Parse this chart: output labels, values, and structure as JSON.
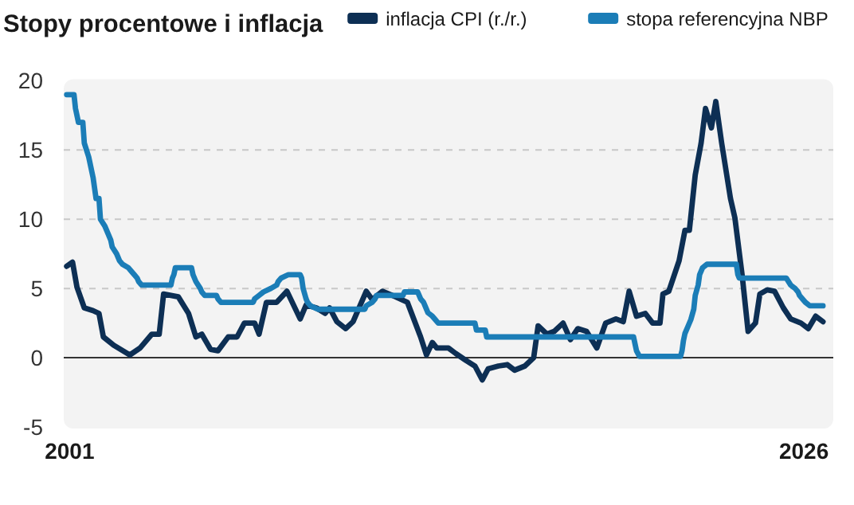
{
  "chart_data": {
    "type": "line",
    "title": "Stopy procentowe i inflacja",
    "legend": "top right",
    "grid": "y",
    "xlim": [
      2000.8,
      2027.0
    ],
    "xticks": [
      2001,
      2026
    ],
    "ylim": [
      -5,
      20
    ],
    "yticks": [
      -5,
      0,
      5,
      10,
      15,
      20
    ],
    "series": [
      {
        "name": "inflacja CPI (r./r.)",
        "color": "#0d2f54",
        "x": [
          2000.9,
          2001.1,
          2001.25,
          2001.5,
          2001.8,
          2002.0,
          2002.15,
          2002.5,
          2003.05,
          2003.4,
          2003.8,
          2004.05,
          2004.2,
          2004.7,
          2005.05,
          2005.3,
          2005.5,
          2005.8,
          2006.05,
          2006.4,
          2006.7,
          2006.95,
          2007.3,
          2007.45,
          2007.7,
          2008.05,
          2008.4,
          2008.85,
          2009.05,
          2009.4,
          2009.7,
          2009.85,
          2010.1,
          2010.4,
          2010.65,
          2011.1,
          2011.3,
          2011.65,
          2012.1,
          2012.5,
          2012.95,
          2013.15,
          2013.35,
          2013.5,
          2013.9,
          2014.15,
          2014.5,
          2014.8,
          2015.05,
          2015.25,
          2015.6,
          2015.9,
          2016.15,
          2016.5,
          2016.8,
          2016.95,
          2017.25,
          2017.5,
          2017.8,
          2018.05,
          2018.3,
          2018.6,
          2018.95,
          2019.25,
          2019.6,
          2019.85,
          2020.05,
          2020.3,
          2020.6,
          2020.85,
          2021.1,
          2021.2,
          2021.4,
          2021.75,
          2021.95,
          2022.1,
          2022.3,
          2022.5,
          2022.65,
          2022.85,
          2023.0,
          2023.2,
          2023.5,
          2023.65,
          2023.9,
          2024.1,
          2024.35,
          2024.5,
          2024.75,
          2025.0,
          2025.3,
          2025.55,
          2025.9,
          2026.15,
          2026.4,
          2026.65
        ],
        "values": [
          6.6,
          6.9,
          5.1,
          3.6,
          3.4,
          3.2,
          1.5,
          0.9,
          0.2,
          0.7,
          1.7,
          1.7,
          4.6,
          4.4,
          3.2,
          1.5,
          1.7,
          0.6,
          0.5,
          1.5,
          1.5,
          2.5,
          2.5,
          1.7,
          4.0,
          4.0,
          4.8,
          2.8,
          3.8,
          3.6,
          3.2,
          3.6,
          2.6,
          2.1,
          2.6,
          4.8,
          4.2,
          4.8,
          4.4,
          4.0,
          1.5,
          0.2,
          1.1,
          0.7,
          0.7,
          0.3,
          -0.2,
          -0.6,
          -1.6,
          -0.8,
          -0.6,
          -0.5,
          -0.9,
          -0.6,
          0.0,
          2.3,
          1.7,
          1.9,
          2.5,
          1.3,
          2.1,
          1.9,
          0.7,
          2.5,
          2.8,
          2.6,
          4.8,
          3.0,
          3.2,
          2.5,
          2.5,
          4.6,
          4.8,
          7.0,
          9.2,
          9.2,
          13.2,
          15.5,
          18.0,
          16.6,
          18.5,
          15.5,
          11.5,
          10.1,
          5.9,
          1.9,
          2.5,
          4.6,
          4.9,
          4.8,
          3.6,
          2.8,
          2.5,
          2.1,
          3.0,
          2.6
        ]
      },
      {
        "name": "stopa referencyjna NBP",
        "color": "#1b7db7",
        "x": [
          2000.9,
          2001.15,
          2001.2,
          2001.3,
          2001.45,
          2001.5,
          2001.65,
          2001.8,
          2001.9,
          2002.0,
          2002.05,
          2002.2,
          2002.3,
          2002.4,
          2002.45,
          2002.6,
          2002.7,
          2002.8,
          2003.0,
          2003.1,
          2003.2,
          2003.3,
          2003.35,
          2003.45,
          2004.45,
          2004.5,
          2004.55,
          2004.6,
          2005.15,
          2005.2,
          2005.3,
          2005.45,
          2005.5,
          2005.6,
          2006.0,
          2006.05,
          2006.15,
          2007.25,
          2007.3,
          2007.45,
          2007.6,
          2007.85,
          2008.05,
          2008.1,
          2008.2,
          2008.45,
          2008.85,
          2008.9,
          2008.95,
          2009.05,
          2009.1,
          2009.2,
          2009.45,
          2011.05,
          2011.1,
          2011.3,
          2011.4,
          2011.45,
          2012.35,
          2012.4,
          2012.85,
          2012.9,
          2012.95,
          2013.05,
          2013.1,
          2013.2,
          2013.35,
          2013.45,
          2013.55,
          2014.8,
          2014.85,
          2015.15,
          2015.2,
          2020.2,
          2020.25,
          2020.3,
          2020.4,
          2021.8,
          2021.85,
          2021.9,
          2021.95,
          2022.05,
          2022.15,
          2022.25,
          2022.3,
          2022.4,
          2022.45,
          2022.55,
          2022.7,
          2023.7,
          2023.75,
          2023.8,
          2025.4,
          2025.55,
          2025.7,
          2025.8,
          2025.85,
          2025.95,
          2026.05,
          2026.2,
          2026.65
        ],
        "values": [
          19,
          19,
          18,
          17,
          17,
          15.5,
          14.5,
          13,
          11.5,
          11.5,
          10,
          9.5,
          9,
          8.5,
          8,
          7.5,
          7,
          6.75,
          6.5,
          6.25,
          6,
          5.75,
          5.5,
          5.25,
          5.25,
          5.75,
          6,
          6.5,
          6.5,
          6,
          5.5,
          5,
          4.75,
          4.5,
          4.5,
          4.25,
          4,
          4,
          4.25,
          4.5,
          4.75,
          5,
          5.25,
          5.5,
          5.75,
          6,
          6,
          5.75,
          5,
          4.25,
          4,
          3.75,
          3.5,
          3.5,
          3.75,
          4,
          4.25,
          4.5,
          4.5,
          4.75,
          4.75,
          4.5,
          4.25,
          4,
          3.75,
          3.25,
          3,
          2.75,
          2.5,
          2.5,
          2,
          2,
          1.5,
          1.5,
          1,
          0.5,
          0.1,
          0.1,
          0.5,
          1.25,
          1.75,
          2.25,
          2.75,
          3.5,
          4.5,
          5.25,
          6,
          6.5,
          6.75,
          6.75,
          6,
          5.75,
          5.75,
          5.25,
          5,
          4.75,
          4.5,
          4.25,
          4,
          3.75,
          3.75
        ]
      }
    ]
  }
}
